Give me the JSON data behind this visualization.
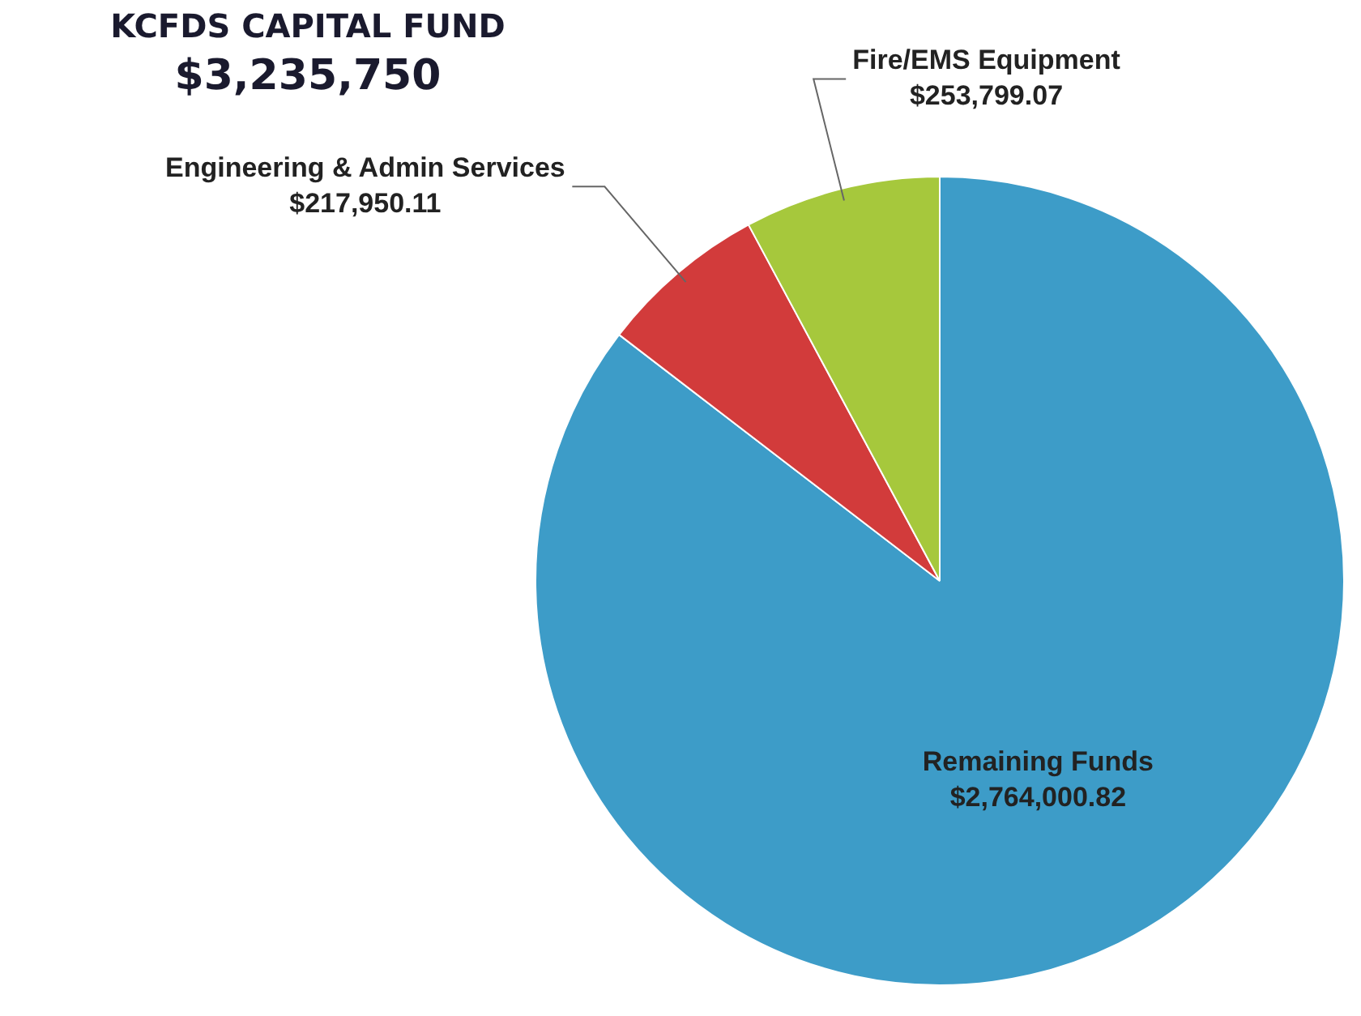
{
  "chart_data": {
    "type": "pie",
    "title": "KCFDS CAPITAL FUND",
    "subtitle": "$3,235,750",
    "categories": [
      "Remaining Funds",
      "Engineering & Admin Services",
      "Fire/EMS Equipment"
    ],
    "values": [
      2764000.82,
      217950.11,
      253799.07
    ],
    "value_labels": [
      "$2,764,000.82",
      "$217,950.11",
      "$253,799.07"
    ],
    "colors": [
      "#3d9cc8",
      "#d23b3b",
      "#a6c83c"
    ],
    "legend": false
  }
}
